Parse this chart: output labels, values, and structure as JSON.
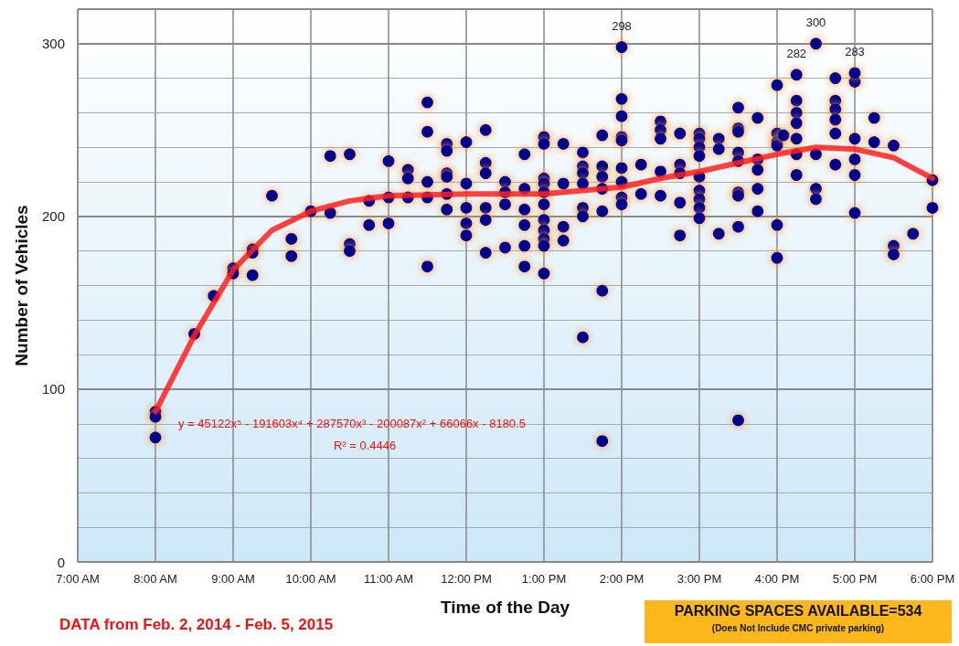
{
  "chart_data": {
    "type": "scatter",
    "xlabel": "Time of the Day",
    "ylabel": "Number of Vehicles",
    "xlim": [
      7,
      18
    ],
    "xticks": [
      {
        "value": 7,
        "label": "7:00 AM"
      },
      {
        "value": 8,
        "label": "8:00 AM"
      },
      {
        "value": 9,
        "label": "9:00 AM"
      },
      {
        "value": 10,
        "label": "10:00 AM"
      },
      {
        "value": 11,
        "label": "11:00 AM"
      },
      {
        "value": 12,
        "label": "12:00 PM"
      },
      {
        "value": 13,
        "label": "1:00 PM"
      },
      {
        "value": 14,
        "label": "2:00 PM"
      },
      {
        "value": 15,
        "label": "3:00 PM"
      },
      {
        "value": 16,
        "label": "4:00 PM"
      },
      {
        "value": 17,
        "label": "5:00 PM"
      },
      {
        "value": 18,
        "label": "6:00 PM"
      }
    ],
    "ylim": [
      0,
      320
    ],
    "yticks": [
      0,
      100,
      200,
      300
    ],
    "grid": true,
    "marker": "circle",
    "series": [
      {
        "color": "#00008b",
        "x": [
          8,
          8,
          8,
          8.5,
          8.75,
          9,
          9,
          9.25,
          9.25,
          9.25,
          9.5,
          9.75,
          9.75,
          10,
          10.25,
          10.25,
          10.5,
          10.5,
          10.5,
          10.75,
          10.75,
          11,
          11,
          11,
          11.25,
          11.25,
          11.25,
          11.5,
          11.5,
          11.5,
          11.5,
          11.5,
          11.75,
          11.75,
          11.75,
          11.75,
          11.75,
          11.75,
          12,
          12,
          12,
          12,
          12,
          12.25,
          12.25,
          12.25,
          12.25,
          12.25,
          12.25,
          12.5,
          12.5,
          12.5,
          12.5,
          12.75,
          12.75,
          12.75,
          12.75,
          12.75,
          12.75,
          13,
          13,
          13,
          13,
          13,
          13,
          13,
          13,
          13,
          13,
          13,
          13.25,
          13.25,
          13.25,
          13.25,
          13.5,
          13.5,
          13.5,
          13.5,
          13.5,
          13.5,
          13.5,
          13.75,
          13.75,
          13.75,
          13.75,
          13.75,
          13.75,
          13.75,
          14,
          14,
          14,
          14,
          14,
          14,
          14,
          14,
          14.25,
          14.25,
          14.5,
          14.5,
          14.5,
          14.5,
          14.5,
          14.75,
          14.75,
          14.75,
          14.75,
          14.75,
          15,
          15,
          15,
          15,
          15,
          15,
          15,
          15,
          15,
          15.25,
          15.25,
          15.25,
          15.5,
          15.5,
          15.5,
          15.5,
          15.5,
          15.5,
          15.5,
          15.5,
          15.5,
          15.75,
          15.75,
          15.75,
          15.75,
          15.75,
          16,
          16,
          16,
          16,
          16,
          16,
          16.083,
          16.25,
          16.25,
          16.25,
          16.25,
          16.25,
          16.25,
          16.5,
          16.5,
          16.5,
          16.75,
          16.75,
          16.75,
          16.75,
          16.75,
          16.75,
          17,
          17,
          17,
          17,
          17,
          17.25,
          17.25,
          17.5,
          17.5,
          17.5,
          17.75,
          18,
          18
        ],
        "values": [
          87,
          84,
          72,
          132,
          154,
          170,
          167,
          181,
          179,
          166,
          212,
          187,
          177,
          203,
          235,
          202,
          236,
          184,
          180,
          209,
          195,
          232,
          211,
          196,
          227,
          222,
          211,
          266,
          249,
          220,
          211,
          171,
          242,
          238,
          225,
          223,
          213,
          204,
          243,
          219,
          205,
          196,
          189,
          250,
          231,
          225,
          205,
          198,
          179,
          220,
          214,
          207,
          182,
          236,
          216,
          204,
          195,
          183,
          171,
          246,
          242,
          222,
          219,
          214,
          207,
          198,
          192,
          187,
          183,
          167,
          242,
          219,
          194,
          186,
          237,
          229,
          225,
          219,
          205,
          200,
          130,
          247,
          229,
          223,
          216,
          203,
          157,
          70,
          268,
          258,
          246,
          244,
          228,
          220,
          211,
          207,
          230,
          213,
          255,
          250,
          245,
          226,
          212,
          248,
          230,
          225,
          208,
          189,
          248,
          245,
          240,
          235,
          223,
          215,
          210,
          205,
          199,
          245,
          239,
          190,
          263,
          251,
          249,
          237,
          232,
          214,
          212,
          194,
          82,
          257,
          233,
          227,
          216,
          203,
          276,
          248,
          243,
          241,
          195,
          176,
          247,
          267,
          260,
          254,
          245,
          236,
          224,
          236,
          216,
          210,
          280,
          267,
          262,
          256,
          248,
          230,
          278,
          245,
          233,
          224,
          202,
          257,
          243,
          241,
          183,
          178,
          190,
          221,
          205
        ]
      },
      {
        "color": "#00008b",
        "x": [
          14,
          16.25,
          16.5,
          17
        ],
        "values": [
          298,
          282,
          300,
          283
        ],
        "value_labels": [
          "298",
          "282",
          "300",
          "283"
        ]
      },
      {
        "type": "line",
        "color": "#ff2020",
        "marker": "none",
        "x": [
          8,
          8.5,
          9,
          9.5,
          10,
          10.5,
          11,
          12,
          13,
          14,
          14.5,
          15,
          15.5,
          16,
          16.5,
          17,
          17.5,
          18
        ],
        "values": [
          87,
          131,
          169,
          192,
          203,
          209,
          212,
          213,
          213,
          217,
          222,
          226,
          231,
          236,
          240,
          239,
          234,
          222
        ]
      }
    ],
    "annotations": [
      "y = 45122x⁵ - 191603x⁴ + 287570x³ - 200087x² + 66066x - 8180.5",
      "R² = 0.4446",
      "DATA from Feb. 2, 2014 - Feb. 5, 2015",
      "PARKING SPACES AVAILABLE=534",
      "(Does Not Include CMC private parking)"
    ]
  }
}
